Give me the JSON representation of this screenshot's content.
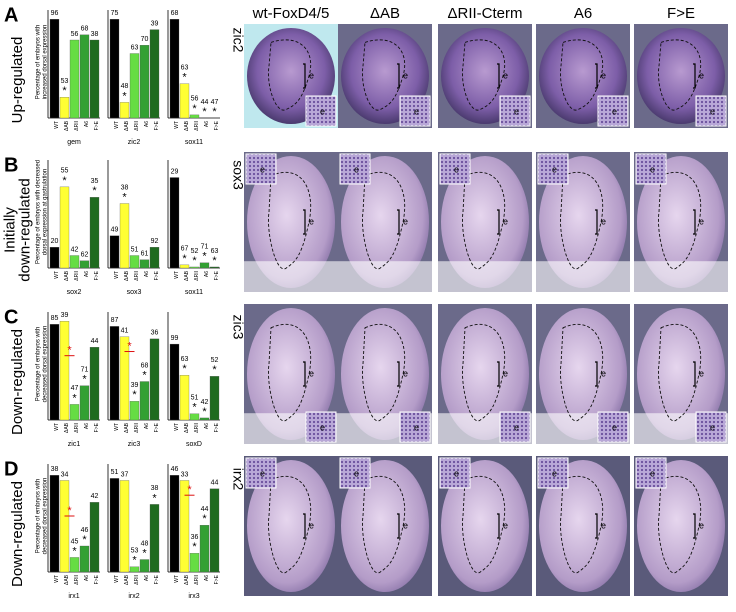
{
  "figure": {
    "columns": [
      "wt-FoxD4/5",
      "ΔAB",
      "ΔRII-Cterm",
      "A6",
      "F>E"
    ],
    "categories": [
      "WT",
      "ΔAB",
      "ΔRII",
      "A6",
      "F>E"
    ],
    "colors": [
      "#000000",
      "#ffff33",
      "#66dd44",
      "#33a033",
      "#1f6b1f"
    ],
    "star": "*",
    "inset_label": "e",
    "panels": [
      {
        "letter": "A",
        "row_label": [
          "Up-regulated"
        ],
        "y_label": [
          "Percentage of embryos with",
          "increased dorsal expression"
        ],
        "image_gene": "zic2",
        "charts": [
          {
            "gene": "gem",
            "values": [
              95,
              20,
              75,
              80,
              75
            ],
            "n": [
              96,
              53,
              56,
              68,
              38
            ],
            "starred": [
              false,
              true,
              false,
              false,
              false
            ],
            "red": false
          },
          {
            "gene": "zic2",
            "values": [
              95,
              15,
              62,
              70,
              85
            ],
            "n": [
              75,
              48,
              63,
              70,
              39
            ],
            "starred": [
              false,
              true,
              false,
              false,
              false
            ],
            "red": false
          },
          {
            "gene": "sox11",
            "values": [
              95,
              33,
              3,
              0,
              0
            ],
            "n": [
              68,
              63,
              56,
              44,
              47
            ],
            "starred": [
              false,
              true,
              true,
              true,
              true
            ],
            "red": false
          }
        ]
      },
      {
        "letter": "B",
        "row_label": [
          "Initially",
          "down-regulated"
        ],
        "y_label": [
          "Percentage of embryos with decreased",
          "dorsal expression at gastrulation"
        ],
        "image_gene": "sox3",
        "charts": [
          {
            "gene": "sox2",
            "values": [
              20,
              78,
              12,
              7,
              68
            ],
            "n": [
              20,
              55,
              42,
              62,
              35
            ],
            "starred": [
              false,
              true,
              false,
              false,
              true
            ],
            "red": false
          },
          {
            "gene": "sox3",
            "values": [
              31,
              62,
              12,
              8,
              20
            ],
            "n": [
              49,
              38,
              51,
              61,
              92
            ],
            "starred": [
              false,
              true,
              false,
              false,
              false
            ],
            "red": false
          },
          {
            "gene": "sox11",
            "values": [
              87,
              3,
              1,
              5,
              1
            ],
            "n": [
              29,
              67,
              52,
              71,
              63
            ],
            "starred": [
              false,
              true,
              true,
              true,
              true
            ],
            "red": false
          }
        ]
      },
      {
        "letter": "C",
        "row_label": [
          "Down-regulated"
        ],
        "y_label": [
          "Percentage of embryos with",
          "decreased dorsal expression"
        ],
        "image_gene": "zic3",
        "charts": [
          {
            "gene": "zic1",
            "values": [
              92,
              95,
              15,
              33,
              70
            ],
            "n": [
              85,
              39,
              47,
              71,
              44
            ],
            "starred": [
              false,
              false,
              true,
              true,
              false
            ],
            "red": true
          },
          {
            "gene": "zic3",
            "values": [
              90,
              80,
              18,
              37,
              78
            ],
            "n": [
              87,
              41,
              39,
              68,
              36
            ],
            "starred": [
              false,
              false,
              true,
              true,
              false
            ],
            "red": true
          },
          {
            "gene": "soxD",
            "values": [
              73,
              43,
              6,
              2,
              42
            ],
            "n": [
              99,
              63,
              51,
              42,
              52
            ],
            "starred": [
              false,
              true,
              true,
              true,
              true
            ],
            "red": false
          }
        ]
      },
      {
        "letter": "D",
        "row_label": [
          "Down-regulated"
        ],
        "y_label": [
          "Percentage of embryos with",
          "decreased dorsal expression"
        ],
        "image_gene": "irx2",
        "charts": [
          {
            "gene": "irx1",
            "values": [
              93,
              88,
              14,
              25,
              67
            ],
            "n": [
              38,
              34,
              45,
              46,
              42
            ],
            "starred": [
              false,
              false,
              true,
              true,
              false
            ],
            "red": true
          },
          {
            "gene": "irx2",
            "values": [
              90,
              88,
              5,
              12,
              65
            ],
            "n": [
              51,
              37,
              53,
              48,
              38
            ],
            "starred": [
              false,
              false,
              true,
              true,
              true
            ],
            "red": false
          },
          {
            "gene": "irx3",
            "values": [
              93,
              88,
              18,
              45,
              80
            ],
            "n": [
              46,
              33,
              36,
              44,
              44
            ],
            "starred": [
              false,
              false,
              true,
              true,
              false
            ],
            "red": true
          }
        ]
      }
    ]
  }
}
